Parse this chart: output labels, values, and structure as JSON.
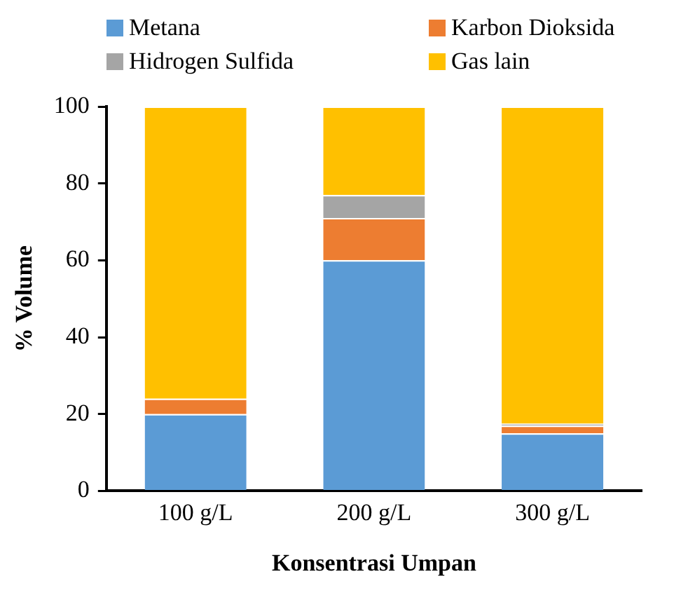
{
  "chart_data": {
    "type": "bar",
    "stacked": true,
    "xlabel": "Konsentrasi Umpan",
    "ylabel": "% Volume",
    "categories": [
      "100 g/L",
      "200 g/L",
      "300 g/L"
    ],
    "series": [
      {
        "name": "Metana",
        "color": "#5b9bd5",
        "values": [
          20,
          60,
          15
        ]
      },
      {
        "name": "Karbon Dioksida",
        "color": "#ed7d31",
        "values": [
          4,
          11,
          2
        ]
      },
      {
        "name": "Hidrogen Sulfida",
        "color": "#a5a5a5",
        "values": [
          null,
          6,
          0.5
        ]
      },
      {
        "name": "Gas lain",
        "color": "#ffc000",
        "values": [
          76,
          23,
          82.5
        ]
      }
    ],
    "ylim": [
      0,
      100
    ],
    "yticks": [
      0,
      20,
      40,
      60,
      80,
      100
    ],
    "grid": false,
    "legend": "top"
  }
}
